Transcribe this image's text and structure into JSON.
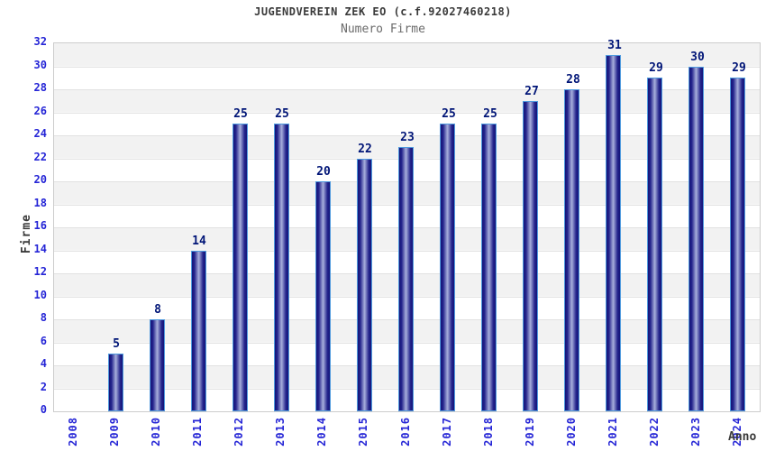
{
  "chart_data": {
    "type": "bar",
    "title": "JUGENDVEREIN ZEK EO (c.f.92027460218)",
    "subtitle": "Numero Firme",
    "xlabel": "Anno",
    "ylabel": "Firme",
    "categories": [
      "2008",
      "2009",
      "2010",
      "2011",
      "2012",
      "2013",
      "2014",
      "2015",
      "2016",
      "2017",
      "2018",
      "2019",
      "2020",
      "2021",
      "2022",
      "2023",
      "2024"
    ],
    "values": [
      0,
      5,
      8,
      14,
      25,
      25,
      20,
      22,
      23,
      25,
      25,
      27,
      28,
      31,
      29,
      30,
      29
    ],
    "ylim": [
      0,
      32
    ],
    "ytick_step": 2,
    "grid": true,
    "legend": "none",
    "band_style": "alternating horizontal stripes every 2 units",
    "bar_labels_shown": true,
    "zero_value_bars_hidden": true,
    "colors": {
      "title": "#3a3a3a",
      "subtitle": "#6b6b6b",
      "axis_label": "#3a3a3a",
      "tick_label": "#2525d6",
      "value_label": "#001577",
      "bar_edge": "#141478",
      "bar_center": "#a8afdc",
      "bar_border": "#4f9ade",
      "band_gray": "#f2f2f2",
      "band_white": "#ffffff",
      "grid_line": "#e2e2e2",
      "plot_border": "#cccccc",
      "background": "#ffffff"
    }
  }
}
